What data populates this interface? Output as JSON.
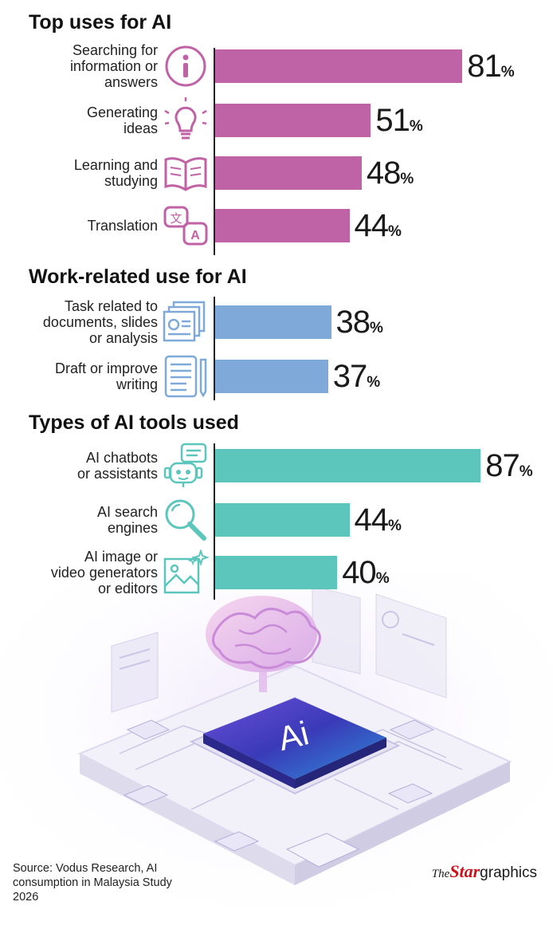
{
  "chart_data": [
    {
      "type": "bar",
      "title": "Top uses for AI",
      "categories": [
        "Searching for information or answers",
        "Generating ideas",
        "Learning and studying",
        "Translation"
      ],
      "label_lines": [
        [
          "Searching for",
          "information or",
          "answers"
        ],
        [
          "Generating",
          "ideas"
        ],
        [
          "Learning and",
          "studying"
        ],
        [
          "Translation"
        ]
      ],
      "icons": [
        "info-icon",
        "lightbulb-icon",
        "book-icon",
        "translate-icon"
      ],
      "values": [
        81,
        51,
        48,
        44
      ],
      "unit": "%",
      "color": "#c062a6"
    },
    {
      "type": "bar",
      "title": "Work-related use for AI",
      "categories": [
        "Task related to documents, slides or analysis",
        "Draft or improve writing"
      ],
      "label_lines": [
        [
          "Task related to",
          "documents, slides",
          "or analysis"
        ],
        [
          "Draft or improve",
          "writing"
        ]
      ],
      "icons": [
        "documents-icon",
        "writing-icon"
      ],
      "values": [
        38,
        37
      ],
      "unit": "%",
      "color": "#7ea9d8"
    },
    {
      "type": "bar",
      "title": "Types of AI tools used",
      "categories": [
        "AI chatbots or assistants",
        "AI search engines",
        "AI image or video generators or editors"
      ],
      "label_lines": [
        [
          "AI chatbots",
          "or assistants"
        ],
        [
          "AI search",
          "engines"
        ],
        [
          "AI image or",
          "video generators",
          "or editors"
        ]
      ],
      "icons": [
        "chatbot-icon",
        "magnifier-icon",
        "image-sparkle-icon"
      ],
      "values": [
        87,
        44,
        40
      ],
      "unit": "%",
      "color": "#5cc6bc"
    }
  ],
  "illustration": {
    "chip_label": "Ai"
  },
  "source": "Source: Vodus Research, AI consumption in Malaysia Study 2026",
  "brand": {
    "the": "The",
    "star": "Star",
    "graphics": "graphics"
  }
}
